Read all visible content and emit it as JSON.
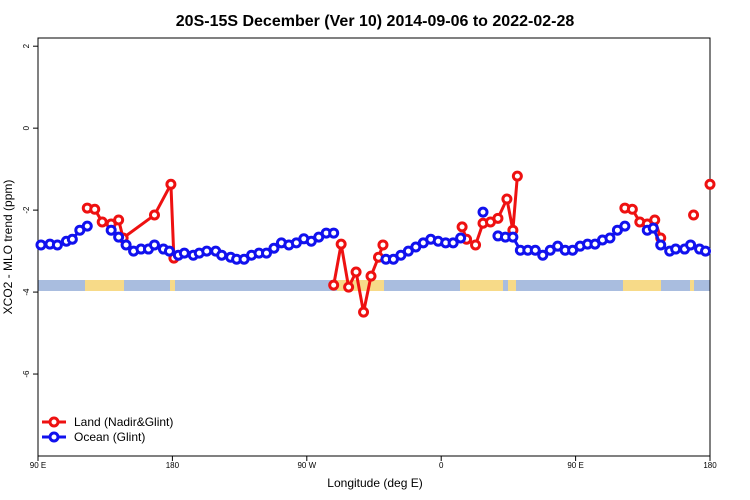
{
  "chart_data": {
    "type": "line",
    "title": "20S-15S December (Ver 10)   2014-09-06 to 2022-02-28",
    "x_label": "Longitude (deg E)",
    "y_label": "XCO2 - MLO trend (ppm)",
    "xlim": [
      90,
      540
    ],
    "ylim": [
      -8,
      2.2
    ],
    "xticks": [
      {
        "value": 90,
        "label": "90 E"
      },
      {
        "value": 180,
        "label": "180"
      },
      {
        "value": 270,
        "label": "90 W"
      },
      {
        "value": 360,
        "label": "0"
      },
      {
        "value": 450,
        "label": "90 E"
      },
      {
        "value": 540,
        "label": "180"
      }
    ],
    "yticks": [
      2,
      0,
      -2,
      -4,
      -6
    ],
    "legend": "bottom-left",
    "series": [
      {
        "name": "Land (Nadir&Glint)",
        "color": "#ee1111",
        "x": [
          123,
          128,
          133,
          139,
          144,
          147,
          168,
          179,
          181,
          null,
          288,
          293,
          298,
          303,
          308,
          313,
          318,
          321,
          null,
          374,
          377,
          383,
          388,
          393,
          398,
          404,
          408,
          411,
          null,
          483,
          488,
          493,
          498,
          503,
          507,
          null,
          529,
          null,
          540
        ],
        "values": [
          -1.95,
          -1.98,
          -2.29,
          -2.34,
          -2.24,
          -2.68,
          -2.12,
          -1.37,
          -3.17,
          null,
          -3.83,
          -2.83,
          -3.88,
          -3.51,
          -4.49,
          -3.61,
          -3.15,
          -2.85,
          null,
          -2.41,
          -2.71,
          -2.85,
          -2.32,
          -2.29,
          -2.2,
          -1.73,
          -2.49,
          -1.17,
          null,
          -1.95,
          -1.98,
          -2.29,
          -2.34,
          -2.24,
          -2.68,
          null,
          -2.12,
          null,
          -1.37
        ]
      },
      {
        "name": "Ocean (Glint)",
        "color": "#1111ee",
        "x": [
          92,
          98,
          103,
          109,
          113,
          118,
          123,
          null,
          139,
          144,
          149,
          154,
          159,
          164,
          168,
          174,
          178,
          184,
          188,
          194,
          198,
          203,
          209,
          213,
          219,
          223,
          228,
          233,
          238,
          243,
          248,
          253,
          258,
          263,
          268,
          273,
          278,
          283,
          288,
          null,
          323,
          328,
          333,
          338,
          343,
          348,
          353,
          358,
          363,
          368,
          373,
          null,
          388,
          null,
          398,
          403,
          408,
          413,
          418,
          423,
          428,
          433,
          438,
          443,
          448,
          453,
          458,
          463,
          468,
          473,
          478,
          483,
          null,
          498,
          502,
          507,
          513,
          517,
          523,
          527,
          533,
          537
        ],
        "values": [
          -2.85,
          -2.83,
          -2.85,
          -2.76,
          -2.71,
          -2.49,
          -2.39,
          null,
          -2.49,
          -2.66,
          -2.85,
          -3.0,
          -2.95,
          -2.95,
          -2.85,
          -2.95,
          -3.0,
          -3.1,
          -3.05,
          -3.1,
          -3.05,
          -3.0,
          -3.0,
          -3.1,
          -3.15,
          -3.2,
          -3.2,
          -3.1,
          -3.05,
          -3.05,
          -2.93,
          -2.8,
          -2.85,
          -2.8,
          -2.7,
          -2.76,
          -2.66,
          -2.56,
          -2.56,
          null,
          -3.2,
          -3.2,
          -3.1,
          -3.0,
          -2.9,
          -2.8,
          -2.71,
          -2.76,
          -2.8,
          -2.8,
          -2.68,
          null,
          -2.05,
          null,
          -2.63,
          -2.66,
          -2.66,
          -2.98,
          -2.98,
          -2.98,
          -3.1,
          -2.98,
          -2.88,
          -2.98,
          -2.98,
          -2.88,
          -2.83,
          -2.83,
          -2.73,
          -2.68,
          -2.49,
          -2.39,
          null,
          -2.49,
          -2.44,
          -2.85,
          -3.0,
          -2.95,
          -2.95,
          -2.85,
          -2.95,
          -3.0
        ]
      }
    ]
  }
}
